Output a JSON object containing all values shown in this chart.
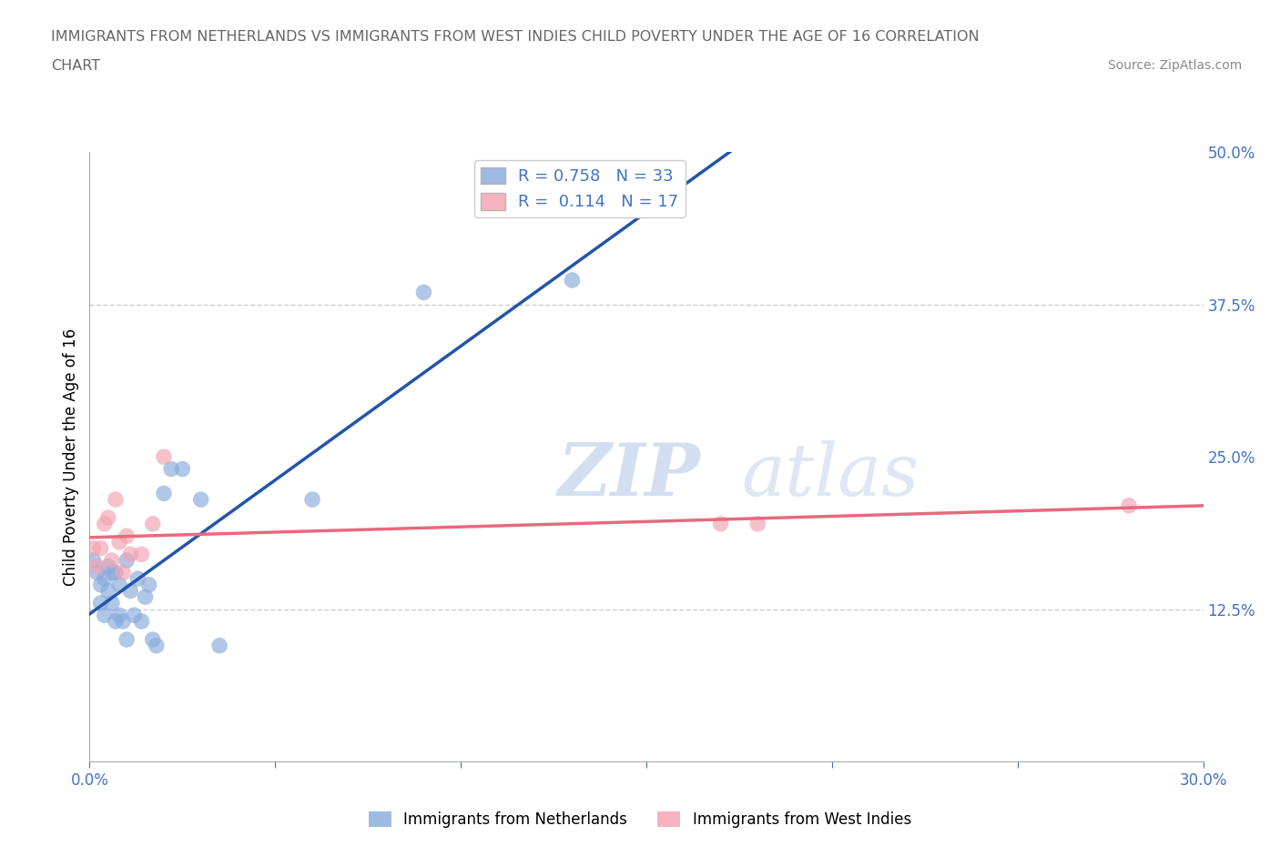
{
  "title_line1": "IMMIGRANTS FROM NETHERLANDS VS IMMIGRANTS FROM WEST INDIES CHILD POVERTY UNDER THE AGE OF 16 CORRELATION",
  "title_line2": "CHART",
  "source": "Source: ZipAtlas.com",
  "tick_color": "#4472C4",
  "ylabel": "Child Poverty Under the Age of 16",
  "legend_label_nl": "Immigrants from Netherlands",
  "legend_label_wi": "Immigrants from West Indies",
  "xlim": [
    0.0,
    0.3
  ],
  "ylim": [
    0.0,
    0.5
  ],
  "xticks": [
    0.0,
    0.05,
    0.1,
    0.15,
    0.2,
    0.25,
    0.3
  ],
  "xticklabels": [
    "0.0%",
    "",
    "",
    "",
    "",
    "",
    "30.0%"
  ],
  "yticks": [
    0.0,
    0.125,
    0.25,
    0.375,
    0.5
  ],
  "yticklabels": [
    "",
    "12.5%",
    "25.0%",
    "37.5%",
    "50.0%"
  ],
  "R_nl": 0.758,
  "N_nl": 33,
  "R_wi": 0.114,
  "N_wi": 17,
  "color_nl": "#87AADB",
  "color_wi": "#F4A0B0",
  "line_color_nl": "#2255AA",
  "line_color_wi": "#E8697D",
  "grid_color": "#CCCCCC",
  "nl_x": [
    0.001,
    0.002,
    0.003,
    0.003,
    0.004,
    0.004,
    0.005,
    0.005,
    0.006,
    0.006,
    0.007,
    0.007,
    0.008,
    0.008,
    0.009,
    0.01,
    0.01,
    0.011,
    0.012,
    0.013,
    0.014,
    0.015,
    0.016,
    0.017,
    0.018,
    0.02,
    0.022,
    0.025,
    0.03,
    0.035,
    0.06,
    0.09,
    0.13
  ],
  "nl_y": [
    0.165,
    0.155,
    0.145,
    0.13,
    0.15,
    0.12,
    0.16,
    0.14,
    0.155,
    0.13,
    0.155,
    0.115,
    0.145,
    0.12,
    0.115,
    0.165,
    0.1,
    0.14,
    0.12,
    0.15,
    0.115,
    0.135,
    0.145,
    0.1,
    0.095,
    0.22,
    0.24,
    0.24,
    0.215,
    0.095,
    0.215,
    0.385,
    0.395
  ],
  "wi_x": [
    0.001,
    0.002,
    0.003,
    0.004,
    0.005,
    0.006,
    0.007,
    0.008,
    0.009,
    0.01,
    0.011,
    0.014,
    0.017,
    0.02,
    0.17,
    0.18,
    0.28
  ],
  "wi_y": [
    0.175,
    0.16,
    0.175,
    0.195,
    0.2,
    0.165,
    0.215,
    0.18,
    0.155,
    0.185,
    0.17,
    0.17,
    0.195,
    0.25,
    0.195,
    0.195,
    0.21
  ]
}
